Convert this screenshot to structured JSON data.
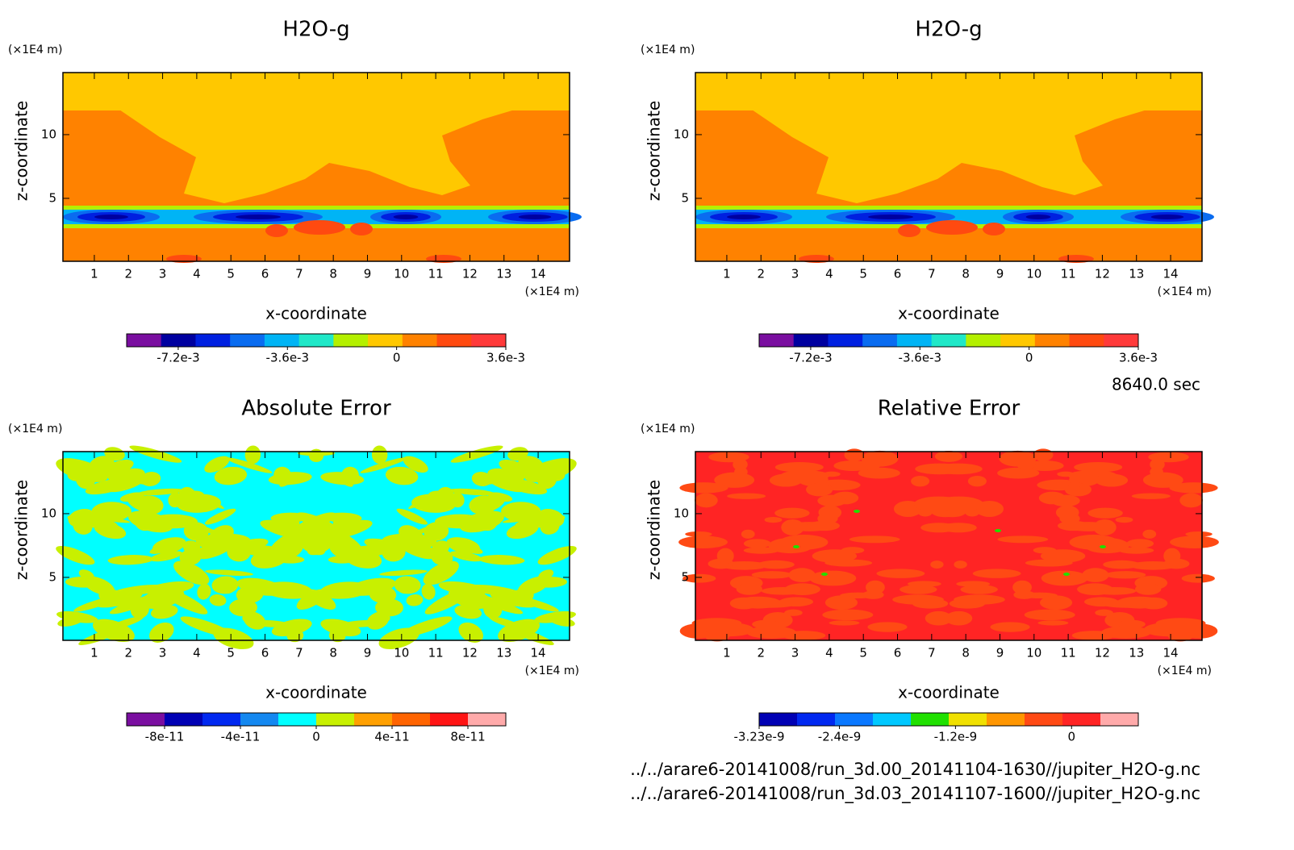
{
  "chart_data": [
    {
      "type": "contour",
      "title": "H2O-g",
      "xlabel": "x-coordinate",
      "ylabel": "z-coordinate",
      "x_unit": "(×1E4 m)",
      "y_unit": "(×1E4 m)",
      "xlim": [
        0.08,
        14.92
      ],
      "ylim": [
        0.06,
        14.87
      ],
      "xticks": [
        1,
        2,
        3,
        4,
        5,
        6,
        7,
        8,
        9,
        10,
        11,
        12,
        13,
        14
      ],
      "yticks": [
        5,
        10
      ],
      "colorbar": {
        "clim": [
          -0.0089,
          0.0036
        ],
        "colors": [
          "#7a0ea0",
          "#0000a0",
          "#0020e0",
          "#0a6cf0",
          "#00b4f5",
          "#20e8c8",
          "#b4f000",
          "#ffc800",
          "#ff8200",
          "#ff4a10",
          "#ff3a3a"
        ],
        "ticks": [
          {
            "value": -0.0072,
            "label": "-7.2e-3"
          },
          {
            "value": -0.0036,
            "label": "-3.6e-3"
          },
          0,
          {
            "value": 0.0036,
            "label": "3.6e-3"
          }
        ]
      }
    },
    {
      "type": "contour",
      "title": "H2O-g",
      "xlabel": "x-coordinate",
      "ylabel": "z-coordinate",
      "x_unit": "(×1E4 m)",
      "y_unit": "(×1E4 m)",
      "xlim": [
        0.08,
        14.92
      ],
      "ylim": [
        0.06,
        14.87
      ],
      "xticks": [
        1,
        2,
        3,
        4,
        5,
        6,
        7,
        8,
        9,
        10,
        11,
        12,
        13,
        14
      ],
      "yticks": [
        5,
        10
      ],
      "colorbar": {
        "clim": [
          -0.0089,
          0.0036
        ],
        "colors": [
          "#7a0ea0",
          "#0000a0",
          "#0020e0",
          "#0a6cf0",
          "#00b4f5",
          "#20e8c8",
          "#b4f000",
          "#ffc800",
          "#ff8200",
          "#ff4a10",
          "#ff3a3a"
        ],
        "ticks": [
          {
            "value": -0.0072,
            "label": "-7.2e-3"
          },
          {
            "value": -0.0036,
            "label": "-3.6e-3"
          },
          0,
          {
            "value": 0.0036,
            "label": "3.6e-3"
          }
        ]
      }
    },
    {
      "type": "contour",
      "title": "Absolute Error",
      "xlabel": "x-coordinate",
      "ylabel": "z-coordinate",
      "x_unit": "(×1E4 m)",
      "y_unit": "(×1E4 m)",
      "xlim": [
        0.08,
        14.92
      ],
      "ylim": [
        0.06,
        14.87
      ],
      "xticks": [
        1,
        2,
        3,
        4,
        5,
        6,
        7,
        8,
        9,
        10,
        11,
        12,
        13,
        14
      ],
      "yticks": [
        5,
        10
      ],
      "colorbar": {
        "clim": [
          -1e-10,
          1e-10
        ],
        "colors": [
          "#7a0ea0",
          "#0000b4",
          "#0028f0",
          "#1488f0",
          "#00ffff",
          "#c8f000",
          "#ffa000",
          "#ff6400",
          "#ff1414",
          "#ffaaaa"
        ],
        "ticks": [
          {
            "value": -8e-11,
            "label": "-8e-11"
          },
          {
            "value": -4e-11,
            "label": "-4e-11"
          },
          0,
          {
            "value": 4e-11,
            "label": "4e-11"
          },
          {
            "value": 8e-11,
            "label": "8e-11"
          }
        ]
      }
    },
    {
      "type": "contour",
      "title": "Relative Error",
      "xlabel": "x-coordinate",
      "ylabel": "z-coordinate",
      "x_unit": "(×1E4 m)",
      "y_unit": "(×1E4 m)",
      "xlim": [
        0.08,
        14.92
      ],
      "ylim": [
        0.06,
        14.87
      ],
      "xticks": [
        1,
        2,
        3,
        4,
        5,
        6,
        7,
        8,
        9,
        10,
        11,
        12,
        13,
        14
      ],
      "yticks": [
        5,
        10
      ],
      "colorbar": {
        "clim": [
          -3.23e-09,
          6.9e-10
        ],
        "colors": [
          "#0000b4",
          "#0028f0",
          "#0a78ff",
          "#00c8ff",
          "#20e000",
          "#f0e000",
          "#ff9600",
          "#ff4a14",
          "#ff2424",
          "#ffaaaa"
        ],
        "ticks": [
          {
            "value": -3.23e-09,
            "label": "-3.23e-9"
          },
          {
            "value": -2.4e-09,
            "label": "-2.4e-9"
          },
          {
            "value": -1.2e-09,
            "label": "-1.2e-9"
          },
          0
        ]
      }
    }
  ],
  "time_label": "8640.0 sec",
  "files": [
    "../../arare6-20141008/run_3d.00_20141104-1630//jupiter_H2O-g.nc",
    "../../arare6-20141008/run_3d.03_20141107-1600//jupiter_H2O-g.nc"
  ]
}
